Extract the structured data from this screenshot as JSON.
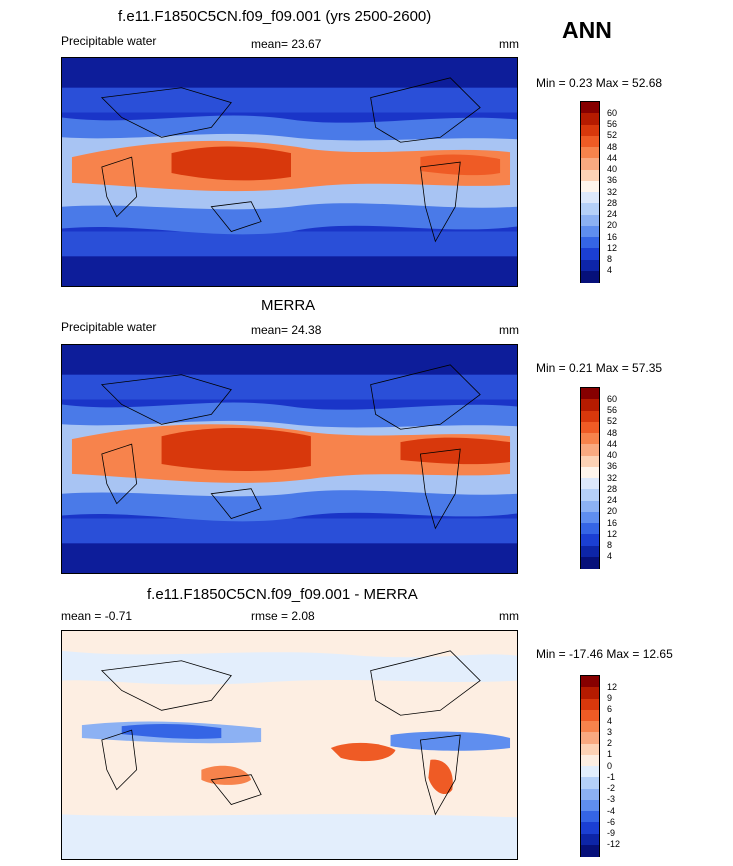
{
  "season": "ANN",
  "panels": [
    {
      "title": "f.e11.F1850C5CN.f09_f09.001 (yrs 2500-2600)",
      "left_label": "Precipitable water",
      "center_label": "mean=  23.67",
      "units": "mm",
      "minmax": "Min =   0.23 Max =  52.68",
      "colorbar": {
        "ticks": [
          "60",
          "56",
          "52",
          "48",
          "44",
          "40",
          "36",
          "32",
          "28",
          "24",
          "20",
          "16",
          "12",
          "8",
          "4"
        ],
        "colors": [
          "#860000",
          "#b51b00",
          "#d8380c",
          "#ef5b25",
          "#f7834c",
          "#f9a980",
          "#fdd2b5",
          "#fff5ec",
          "#dde8fb",
          "#b5d0f8",
          "#8cb1f3",
          "#5f8eef",
          "#3565e5",
          "#1b3fd3",
          "#0d25a8",
          "#06107a"
        ]
      },
      "colors": {
        "low": "#0d1d9a",
        "mid": "#4a7ae8",
        "high": "#e25a2e"
      }
    },
    {
      "title": "MERRA",
      "left_label": "Precipitable water",
      "center_label": "mean=  24.38",
      "units": "mm",
      "minmax": "Min =   0.21 Max =  57.35",
      "colorbar": {
        "ticks": [
          "60",
          "56",
          "52",
          "48",
          "44",
          "40",
          "36",
          "32",
          "28",
          "24",
          "20",
          "16",
          "12",
          "8",
          "4"
        ],
        "colors": [
          "#860000",
          "#b51b00",
          "#d8380c",
          "#ef5b25",
          "#f7834c",
          "#f9a980",
          "#fdd2b5",
          "#fff5ec",
          "#dde8fb",
          "#b5d0f8",
          "#8cb1f3",
          "#5f8eef",
          "#3565e5",
          "#1b3fd3",
          "#0d25a8",
          "#06107a"
        ]
      },
      "colors": {
        "low": "#0d1d9a",
        "mid": "#4a7ae8",
        "high": "#d8380c"
      }
    },
    {
      "title": "f.e11.F1850C5CN.f09_f09.001 - MERRA",
      "left_label": "mean =  -0.71",
      "center_label": "rmse =   2.08",
      "units": "mm",
      "minmax": "Min = -17.46 Max =  12.65",
      "colorbar": {
        "ticks": [
          "12",
          "9",
          "6",
          "4",
          "3",
          "2",
          "1",
          "0",
          "-1",
          "-2",
          "-3",
          "-4",
          "-6",
          "-9",
          "-12"
        ],
        "colors": [
          "#860000",
          "#b51b00",
          "#d8380c",
          "#ef5b25",
          "#f7834c",
          "#f9a980",
          "#fdd2b5",
          "#fdeee2",
          "#e3eefc",
          "#b5d0f8",
          "#8cb1f3",
          "#5f8eef",
          "#3565e5",
          "#1b3fd3",
          "#0d25a8",
          "#06107a"
        ]
      },
      "colors": {
        "low": "#3565e5",
        "mid": "#fdeee2",
        "high": "#ef5b25"
      }
    }
  ]
}
